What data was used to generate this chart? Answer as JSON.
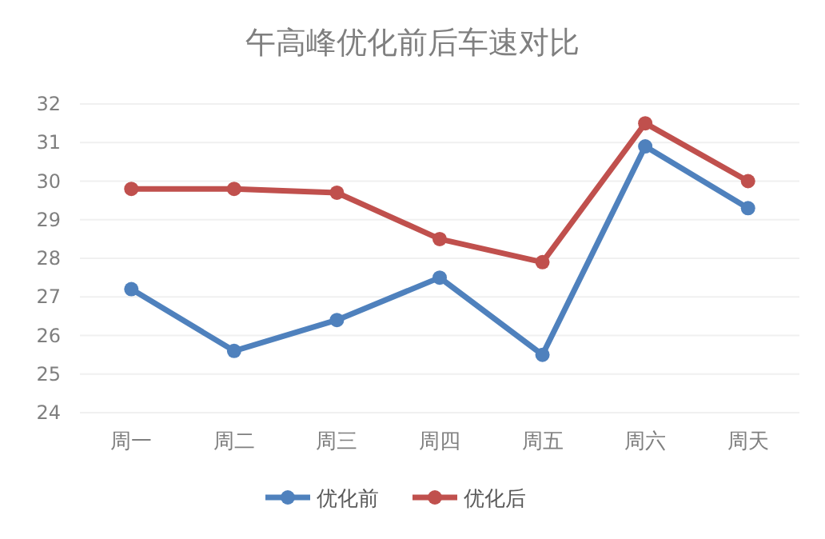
{
  "chart_data": {
    "type": "line",
    "title": "午高峰优化前后车速对比",
    "categories": [
      "周一",
      "周二",
      "周三",
      "周四",
      "周五",
      "周六",
      "周天"
    ],
    "series": [
      {
        "name": "优化前",
        "color": "#4f81bd",
        "values": [
          27.2,
          25.6,
          26.4,
          27.5,
          25.5,
          30.9,
          29.3
        ]
      },
      {
        "name": "优化后",
        "color": "#c0504d",
        "values": [
          29.8,
          29.8,
          29.7,
          28.5,
          27.9,
          31.5,
          30.0
        ]
      }
    ],
    "ylim": [
      24,
      32
    ],
    "yticks": [
      24,
      25,
      26,
      27,
      28,
      29,
      30,
      31,
      32
    ],
    "grid": "y",
    "legend": "bottom",
    "marker": "circle",
    "line_style": "solid"
  }
}
